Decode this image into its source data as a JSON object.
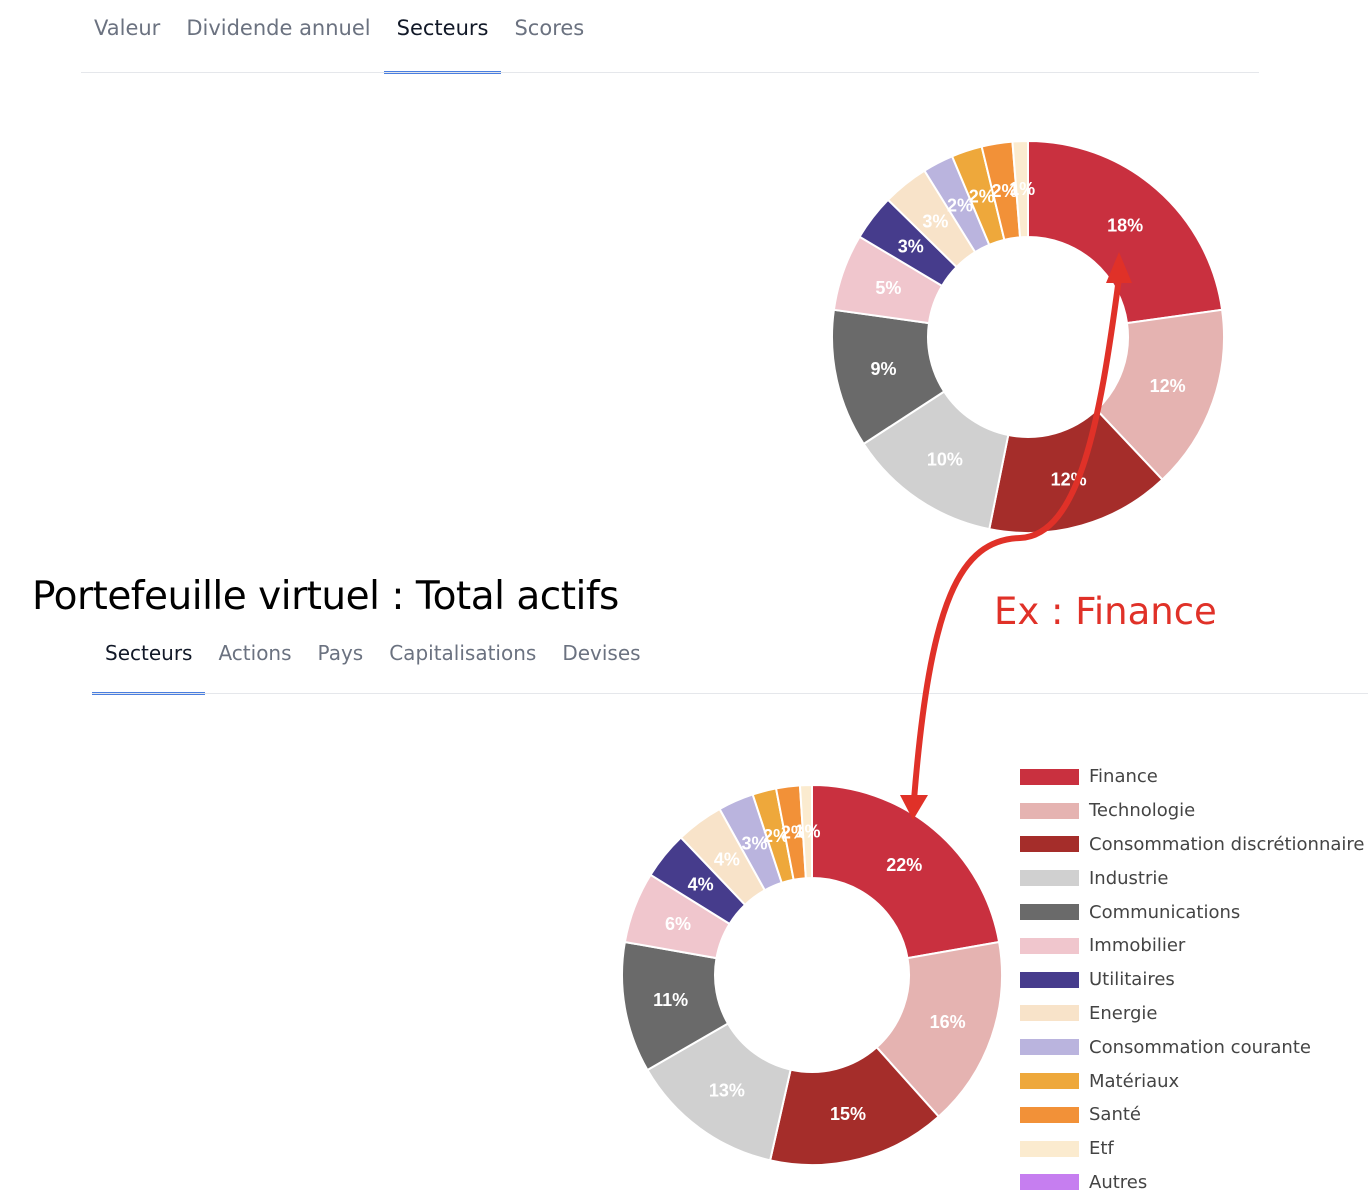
{
  "top_tabs": [
    {
      "label": "Valeur",
      "active": false
    },
    {
      "label": "Dividende annuel",
      "active": false
    },
    {
      "label": "Secteurs",
      "active": true
    },
    {
      "label": "Scores",
      "active": false
    }
  ],
  "section_title": "Portefeuille virtuel : Total actifs",
  "bottom_tabs": [
    {
      "label": "Secteurs",
      "active": true
    },
    {
      "label": "Actions",
      "active": false
    },
    {
      "label": "Pays",
      "active": false
    },
    {
      "label": "Capitalisations",
      "active": false
    },
    {
      "label": "Devises",
      "active": false
    }
  ],
  "annotation": {
    "text": "Ex : Finance",
    "color": "#e03128"
  },
  "colors": {
    "Finance": "#c9303f",
    "Technologie": "#e5b3b1",
    "Consommation discrétionnaire": "#a52d2a",
    "Industrie": "#d0d0d0",
    "Communications": "#6a6a6a",
    "Immobilier": "#f0c6cd",
    "Utilitaires": "#463c8c",
    "Energie": "#f8e3c9",
    "Consommation courante": "#bab4de",
    "Matériaux": "#eea83b",
    "Santé": "#f29138",
    "Etf": "#fbebcf",
    "Autres": "#c67ef0"
  },
  "legend": [
    "Finance",
    "Technologie",
    "Consommation discrétionnaire",
    "Industrie",
    "Communications",
    "Immobilier",
    "Utilitaires",
    "Energie",
    "Consommation courante",
    "Matériaux",
    "Santé",
    "Etf",
    "Autres"
  ],
  "chart_data": [
    {
      "type": "pie",
      "categories": [
        "Finance",
        "Technologie",
        "Consommation discrétionnaire",
        "Industrie",
        "Communications",
        "Immobilier",
        "Utilitaires",
        "Energie",
        "Consommation courante",
        "Matériaux",
        "Santé",
        "Etf"
      ],
      "values": [
        18,
        12,
        12,
        10,
        9,
        5,
        3,
        3,
        2,
        2,
        2,
        1
      ],
      "labels": [
        "18%",
        "12%",
        "12%",
        "10%",
        "9%",
        "5%",
        "3%",
        "3%",
        "2%",
        "2%",
        "2%",
        "1%"
      ]
    },
    {
      "type": "pie",
      "categories": [
        "Finance",
        "Technologie",
        "Consommation discrétionnaire",
        "Industrie",
        "Communications",
        "Immobilier",
        "Utilitaires",
        "Energie",
        "Consommation courante",
        "Matériaux",
        "Santé",
        "Etf"
      ],
      "values": [
        22,
        16,
        15,
        13,
        11,
        6,
        4,
        4,
        3,
        2,
        2,
        1
      ],
      "labels": [
        "22%",
        "16%",
        "15%",
        "13%",
        "11%",
        "6%",
        "4%",
        "4%",
        "3%",
        "2%",
        "2%",
        "1%"
      ]
    }
  ]
}
